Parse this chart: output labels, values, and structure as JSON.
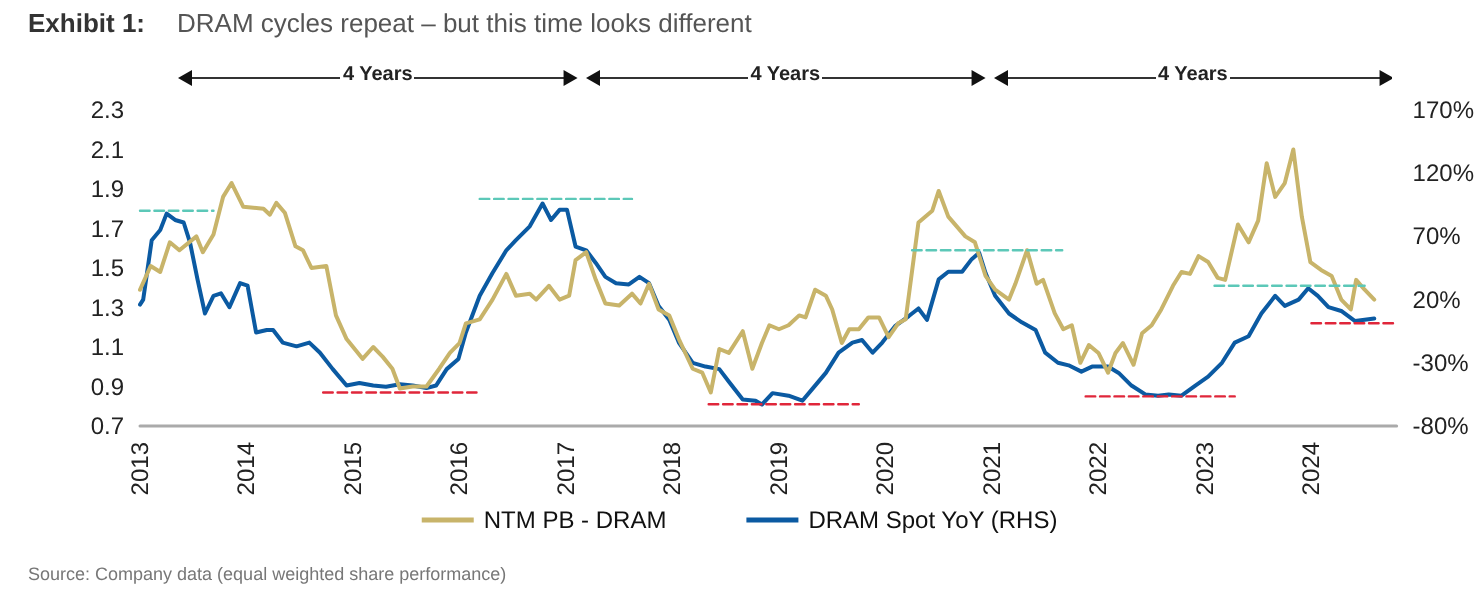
{
  "chart_data": {
    "type": "line",
    "title": "Exhibit 1:",
    "subtitle": "DRAM cycles repeat – but this time looks different",
    "xlim": [
      2013,
      2024.8
    ],
    "xticks": [
      2013,
      2014,
      2015,
      2016,
      2017,
      2018,
      2019,
      2020,
      2021,
      2022,
      2023,
      2024
    ],
    "ylim": [
      0.7,
      2.3
    ],
    "yticks": [
      0.7,
      0.9,
      1.1,
      1.3,
      1.5,
      1.7,
      1.9,
      2.1,
      2.3
    ],
    "y2lim": [
      -80,
      170
    ],
    "y2ticks": [
      {
        "value": -80,
        "label": "-80%"
      },
      {
        "value": -30,
        "label": "-30%"
      },
      {
        "value": 20,
        "label": "20%"
      },
      {
        "value": 70,
        "label": "70%"
      },
      {
        "value": 120,
        "label": "120%"
      },
      {
        "value": 170,
        "label": "170%"
      }
    ],
    "grid": false,
    "legend": "bottom",
    "marker": "none",
    "annotations": [
      "4 Years",
      "4 Years",
      "4 Years",
      "Source: Company data (equal weighted share performance)"
    ],
    "series": [
      {
        "name": "NTM PB - DRAM",
        "color": "#c8b46a",
        "line_style": "solid",
        "x": [
          2013.0,
          2013.1,
          2013.19,
          2013.28,
          2013.37,
          2013.53,
          2013.59,
          2013.69,
          2013.78,
          2013.86,
          2013.97,
          2014.16,
          2014.22,
          2014.28,
          2014.36,
          2014.46,
          2014.53,
          2014.61,
          2014.75,
          2014.84,
          2014.94,
          2015.09,
          2015.19,
          2015.28,
          2015.37,
          2015.44,
          2015.56,
          2015.69,
          2015.81,
          2015.91,
          2016.0,
          2016.06,
          2016.19,
          2016.31,
          2016.44,
          2016.53,
          2016.66,
          2016.72,
          2016.84,
          2016.94,
          2017.03,
          2017.09,
          2017.19,
          2017.28,
          2017.37,
          2017.5,
          2017.62,
          2017.7,
          2017.78,
          2017.87,
          2017.97,
          2018.06,
          2018.19,
          2018.28,
          2018.36,
          2018.44,
          2018.53,
          2018.66,
          2018.75,
          2018.84,
          2018.91,
          2019.0,
          2019.09,
          2019.19,
          2019.25,
          2019.34,
          2019.44,
          2019.5,
          2019.59,
          2019.66,
          2019.75,
          2019.84,
          2019.94,
          2020.03,
          2020.12,
          2020.19,
          2020.31,
          2020.44,
          2020.5,
          2020.59,
          2020.75,
          2020.84,
          2020.94,
          2021.03,
          2021.16,
          2021.22,
          2021.33,
          2021.42,
          2021.48,
          2021.59,
          2021.67,
          2021.75,
          2021.83,
          2021.91,
          2022.0,
          2022.09,
          2022.16,
          2022.23,
          2022.33,
          2022.41,
          2022.5,
          2022.59,
          2022.7,
          2022.78,
          2022.86,
          2022.94,
          2023.03,
          2023.12,
          2023.19,
          2023.31,
          2023.41,
          2023.5,
          2023.58,
          2023.66,
          2023.75,
          2023.83,
          2023.91,
          2023.99,
          2024.09,
          2024.19,
          2024.28,
          2024.37,
          2024.42,
          2024.5,
          2024.59
        ],
        "values": [
          1.39,
          1.51,
          1.48,
          1.63,
          1.59,
          1.66,
          1.58,
          1.67,
          1.86,
          1.93,
          1.81,
          1.8,
          1.77,
          1.83,
          1.78,
          1.61,
          1.59,
          1.5,
          1.51,
          1.26,
          1.14,
          1.04,
          1.1,
          1.05,
          0.99,
          0.89,
          0.9,
          0.9,
          0.99,
          1.07,
          1.12,
          1.22,
          1.24,
          1.34,
          1.47,
          1.36,
          1.37,
          1.34,
          1.41,
          1.34,
          1.36,
          1.54,
          1.58,
          1.44,
          1.32,
          1.31,
          1.37,
          1.32,
          1.42,
          1.29,
          1.26,
          1.14,
          0.99,
          0.97,
          0.87,
          1.09,
          1.07,
          1.18,
          0.99,
          1.12,
          1.21,
          1.19,
          1.21,
          1.26,
          1.25,
          1.39,
          1.36,
          1.29,
          1.12,
          1.19,
          1.19,
          1.25,
          1.25,
          1.15,
          1.22,
          1.24,
          1.73,
          1.79,
          1.89,
          1.76,
          1.66,
          1.63,
          1.46,
          1.39,
          1.34,
          1.42,
          1.59,
          1.42,
          1.44,
          1.27,
          1.19,
          1.21,
          1.02,
          1.11,
          1.07,
          0.97,
          1.07,
          1.12,
          1.01,
          1.17,
          1.21,
          1.29,
          1.41,
          1.48,
          1.47,
          1.56,
          1.53,
          1.45,
          1.44,
          1.72,
          1.63,
          1.74,
          2.03,
          1.86,
          1.93,
          2.1,
          1.76,
          1.53,
          1.49,
          1.46,
          1.34,
          1.29,
          1.44,
          1.39,
          1.34
        ]
      },
      {
        "name": "DRAM Spot YoY (RHS)",
        "color": "#0b5aa2",
        "line_style": "solid",
        "axis": "y2",
        "x": [
          2013.0,
          2013.03,
          2013.11,
          2013.19,
          2013.25,
          2013.33,
          2013.41,
          2013.47,
          2013.54,
          2013.61,
          2013.69,
          2013.76,
          2013.84,
          2013.94,
          2014.01,
          2014.09,
          2014.19,
          2014.25,
          2014.34,
          2014.47,
          2014.59,
          2014.69,
          2014.81,
          2014.94,
          2015.06,
          2015.19,
          2015.31,
          2015.44,
          2015.56,
          2015.69,
          2015.78,
          2015.88,
          2015.99,
          2016.06,
          2016.19,
          2016.31,
          2016.44,
          2016.53,
          2016.66,
          2016.78,
          2016.86,
          2016.94,
          2017.01,
          2017.09,
          2017.19,
          2017.28,
          2017.37,
          2017.47,
          2017.59,
          2017.69,
          2017.78,
          2017.87,
          2017.97,
          2018.06,
          2018.19,
          2018.31,
          2018.44,
          2018.53,
          2018.66,
          2018.78,
          2018.84,
          2018.94,
          2019.09,
          2019.22,
          2019.31,
          2019.44,
          2019.56,
          2019.69,
          2019.78,
          2019.88,
          2019.97,
          2020.09,
          2020.22,
          2020.31,
          2020.39,
          2020.5,
          2020.59,
          2020.72,
          2020.81,
          2020.88,
          2020.94,
          2021.03,
          2021.16,
          2021.28,
          2021.41,
          2021.5,
          2021.62,
          2021.72,
          2021.84,
          2021.94,
          2022.09,
          2022.19,
          2022.31,
          2022.44,
          2022.56,
          2022.66,
          2022.78,
          2022.91,
          2023.03,
          2023.16,
          2023.28,
          2023.41,
          2023.53,
          2023.66,
          2023.75,
          2023.88,
          2023.97,
          2024.06,
          2024.16,
          2024.28,
          2024.41,
          2024.5,
          2024.59
        ],
        "values": [
          16,
          20,
          67,
          75,
          88,
          83,
          81,
          65,
          36,
          9,
          23,
          25,
          14,
          33,
          31,
          -6,
          -4,
          -4,
          -14,
          -17,
          -14,
          -22,
          -35,
          -48,
          -46,
          -48,
          -49,
          -47,
          -48,
          -50,
          -48,
          -35,
          -27,
          -6,
          23,
          41,
          59,
          67,
          78,
          96,
          83,
          91,
          91,
          62,
          59,
          49,
          38,
          33,
          32,
          38,
          33,
          15,
          4,
          -14,
          -30,
          -33,
          -35,
          -45,
          -59,
          -60,
          -63,
          -54,
          -56,
          -60,
          -51,
          -38,
          -22,
          -14,
          -12,
          -22,
          -14,
          -1,
          7,
          13,
          4,
          36,
          42,
          42,
          52,
          57,
          41,
          23,
          9,
          2,
          -4,
          -22,
          -30,
          -32,
          -37,
          -33,
          -33,
          -38,
          -48,
          -55,
          -56,
          -55,
          -56,
          -48,
          -41,
          -30,
          -14,
          -9,
          9,
          23,
          15,
          20,
          29,
          23,
          14,
          11,
          3,
          4,
          5
        ]
      },
      {
        "color": "#5cc8b8",
        "line_style": "dashed",
        "x": [
          2013.0,
          2013.69
        ],
        "values": [
          1.79,
          1.79
        ]
      },
      {
        "color": "#e0263a",
        "line_style": "dashed",
        "x": [
          2014.72,
          2016.16
        ],
        "values": [
          0.87,
          0.87
        ]
      },
      {
        "color": "#5cc8b8",
        "line_style": "dashed",
        "x": [
          2016.19,
          2017.62
        ],
        "values": [
          1.85,
          1.85
        ]
      },
      {
        "color": "#e0263a",
        "line_style": "dashed",
        "x": [
          2018.34,
          2019.75
        ],
        "values": [
          0.81,
          0.81
        ]
      },
      {
        "color": "#5cc8b8",
        "line_style": "dashed",
        "x": [
          2020.25,
          2021.66
        ],
        "values": [
          1.59,
          1.59
        ]
      },
      {
        "color": "#e0263a",
        "line_style": "dashed",
        "x": [
          2021.88,
          2023.28
        ],
        "values": [
          0.85,
          0.85
        ]
      },
      {
        "color": "#5cc8b8",
        "line_style": "dashed",
        "x": [
          2023.09,
          2024.5
        ],
        "values": [
          1.41,
          1.41
        ]
      },
      {
        "color": "#e0263a",
        "line_style": "dashed",
        "x": [
          2024.0,
          2024.8
        ],
        "values": [
          1.22,
          1.22
        ]
      }
    ]
  }
}
